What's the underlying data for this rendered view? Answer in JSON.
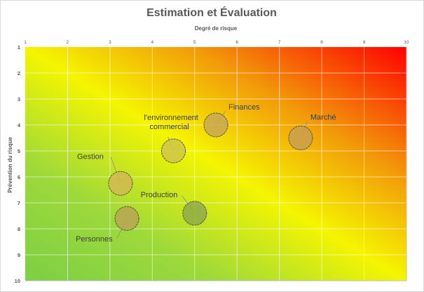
{
  "chart_data": {
    "type": "scatter",
    "subtype": "bubble-risk-matrix",
    "title": "Estimation et Évaluation",
    "xlabel": "Degré de risque",
    "ylabel": "Prévention du risque",
    "xlim": [
      1,
      10
    ],
    "ylim": [
      1,
      10
    ],
    "y_inverted": true,
    "x_axis_position": "top",
    "x_ticks": [
      "1",
      "2",
      "3",
      "4",
      "5",
      "6",
      "7",
      "8",
      "9",
      "10"
    ],
    "y_ticks": [
      "1",
      "2",
      "3",
      "4",
      "5",
      "6",
      "7",
      "8",
      "9",
      "10"
    ],
    "grid": true,
    "background_gradient": {
      "direction": "diagonal from bottom-left to top-right",
      "stops": [
        "#7ccf45",
        "#f7f500",
        "#ff0000"
      ]
    },
    "points": [
      {
        "name": "Finances",
        "x": 5.5,
        "y": 4.0,
        "color": "#c8a755"
      },
      {
        "name": "Marché",
        "x": 7.5,
        "y": 4.5,
        "color": "#c8a04f"
      },
      {
        "name": "l'environnement commercial",
        "label_lines": [
          "l'environnement",
          "commercial"
        ],
        "x": 4.5,
        "y": 5.0,
        "color": "#cfc44a"
      },
      {
        "name": "Gestion",
        "x": 3.25,
        "y": 6.25,
        "color": "#d0b951"
      },
      {
        "name": "Production",
        "x": 5.0,
        "y": 7.4,
        "color": "#8eaa4a"
      },
      {
        "name": "Personnes",
        "x": 3.4,
        "y": 7.6,
        "color": "#b8a553"
      }
    ]
  }
}
